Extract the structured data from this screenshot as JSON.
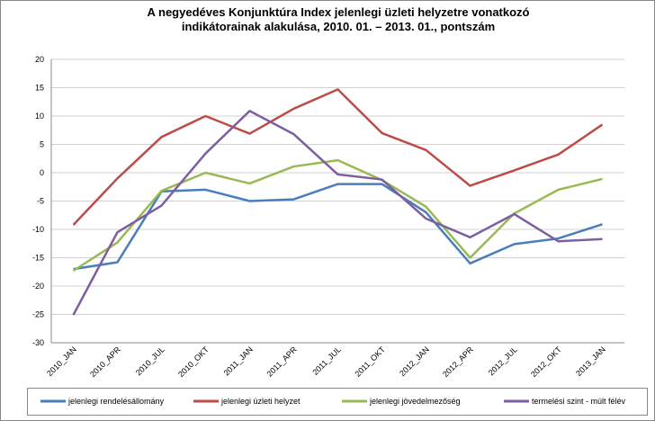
{
  "chart_data": {
    "type": "line",
    "title": [
      "A negyedéves Konjunktúra Index jelenlegi üzleti helyzetre vonatkozó",
      "indikátorainak alakulása, 2010. 01. – 2013. 01., pontszám"
    ],
    "categories": [
      "2010_JAN",
      "2010_APR",
      "2010_JUL",
      "2010_OKT",
      "2011_JAN",
      "2011_APR",
      "2011_JUL",
      "2011_OKT",
      "2012_JAN",
      "2012_APR",
      "2012_JUL",
      "2012_OKT",
      "2013_JAN"
    ],
    "series": [
      {
        "name": "jelenlegi rendelésállomány",
        "color": "#4a7ebb",
        "values": [
          -17,
          -15.8,
          -3.3,
          -3,
          -5,
          -4.7,
          -2,
          -2,
          -7,
          -16,
          -12.6,
          -11.6,
          -9.1
        ]
      },
      {
        "name": "jelenlegi üzleti helyzet",
        "color": "#be4b48",
        "values": [
          -9.2,
          -1,
          6.3,
          10,
          6.9,
          11.3,
          14.7,
          7,
          4,
          -2.3,
          0.4,
          3.2,
          8.5
        ]
      },
      {
        "name": "jelenlegi jövedelmezőség",
        "color": "#98b954",
        "values": [
          -17.3,
          -12.3,
          -3.2,
          0,
          -1.9,
          1.1,
          2.2,
          -1.3,
          -6,
          -15,
          -7.2,
          -3,
          -1.1
        ]
      },
      {
        "name": "termelési szint - múlt félév",
        "color": "#7d5fa0",
        "values": [
          -25.1,
          -10.5,
          -5.8,
          3.4,
          10.9,
          6.8,
          -0.3,
          -1.2,
          -8.1,
          -11.4,
          -7.3,
          -12.1,
          -11.7
        ]
      }
    ],
    "ylim": [
      -30,
      20
    ],
    "yticks": [
      -30,
      -25,
      -20,
      -15,
      -10,
      -5,
      0,
      5,
      10,
      15,
      20
    ],
    "grid": true,
    "legend": "bottom"
  }
}
